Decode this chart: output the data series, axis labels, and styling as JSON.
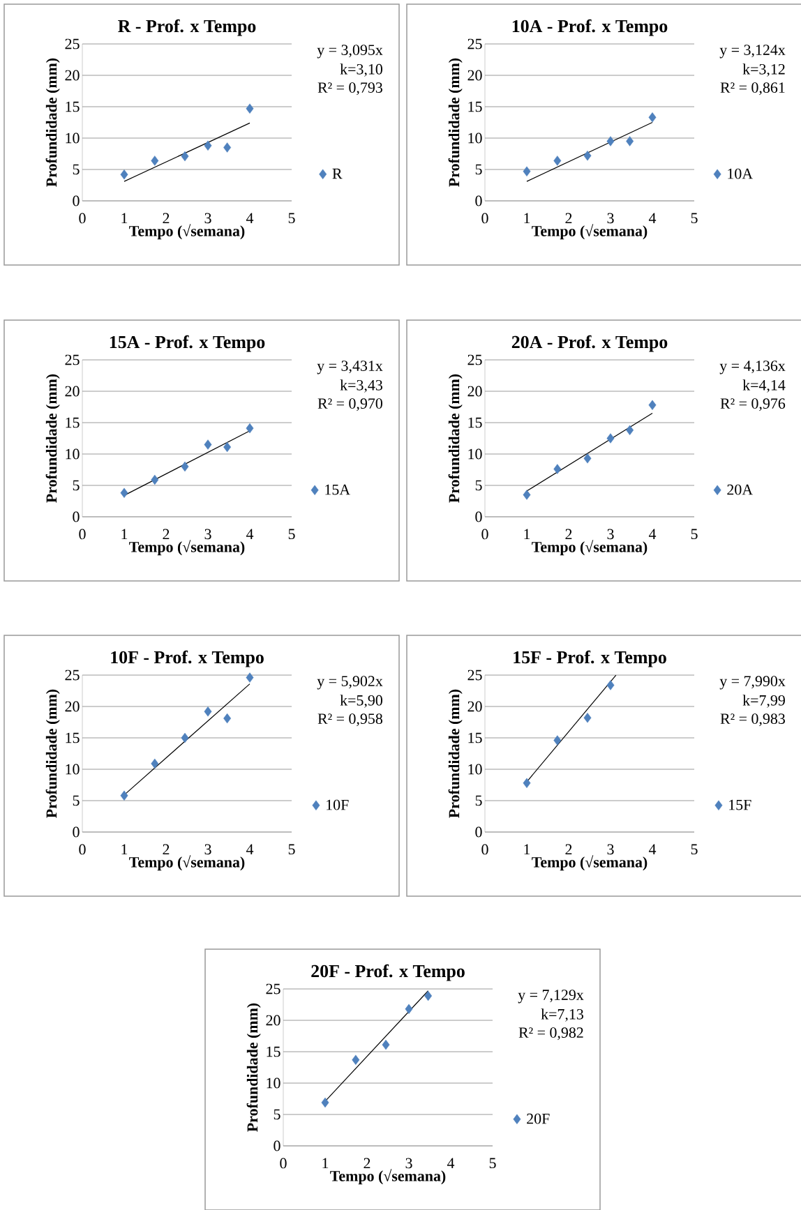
{
  "chart_data": [
    {
      "type": "scatter",
      "title": "R - Prof. x Tempo",
      "xlabel": "Tempo (√semana)",
      "ylabel": "Profundidade (mm)",
      "annotations": [
        "y = 3,095x",
        "k=3,10",
        "R² = 0,793"
      ],
      "xlim": [
        0,
        5
      ],
      "ylim": [
        0,
        25
      ],
      "xticks": [
        0,
        1,
        2,
        3,
        4,
        5
      ],
      "yticks": [
        0,
        5,
        10,
        15,
        20,
        25
      ],
      "grid": "y",
      "legend": "right",
      "series": [
        {
          "name": "R",
          "color": "#4f81bd",
          "marker": "diamond",
          "x": [
            1,
            1.73,
            2.45,
            3,
            3.46,
            4
          ],
          "values": [
            4.2,
            6.4,
            7.1,
            8.8,
            8.5,
            14.7
          ]
        },
        {
          "type": "line",
          "color": "#000000",
          "marker": "none",
          "x": [
            1,
            4
          ],
          "values": [
            3.1,
            12.4
          ]
        }
      ]
    },
    {
      "type": "scatter",
      "title": "10A - Prof. x Tempo",
      "xlabel": "Tempo (√semana)",
      "ylabel": "Profundidade (mm)",
      "annotations": [
        "y = 3,124x",
        "k=3,12",
        "R² = 0,861"
      ],
      "xlim": [
        0,
        5
      ],
      "ylim": [
        0,
        25
      ],
      "xticks": [
        0,
        1,
        2,
        3,
        4,
        5
      ],
      "yticks": [
        0,
        5,
        10,
        15,
        20,
        25
      ],
      "grid": "y",
      "legend": "right",
      "series": [
        {
          "name": "10A",
          "color": "#4f81bd",
          "marker": "diamond",
          "x": [
            1,
            1.73,
            2.45,
            3,
            3.46,
            4
          ],
          "values": [
            4.7,
            6.4,
            7.2,
            9.5,
            9.5,
            13.3
          ]
        },
        {
          "type": "line",
          "color": "#000000",
          "marker": "none",
          "x": [
            1,
            4
          ],
          "values": [
            3.1,
            12.5
          ]
        }
      ]
    },
    {
      "type": "scatter",
      "title": "15A - Prof. x Tempo",
      "xlabel": "Tempo (√semana)",
      "ylabel": "Profundidade (mm)",
      "annotations": [
        "y = 3,431x",
        "k=3,43",
        "R² = 0,970"
      ],
      "xlim": [
        0,
        5
      ],
      "ylim": [
        0,
        25
      ],
      "xticks": [
        0,
        1,
        2,
        3,
        4,
        5
      ],
      "yticks": [
        0,
        5,
        10,
        15,
        20,
        25
      ],
      "grid": "y",
      "legend": "right",
      "series": [
        {
          "name": "15A",
          "color": "#4f81bd",
          "marker": "diamond",
          "x": [
            1,
            1.73,
            2.45,
            3,
            3.46,
            4
          ],
          "values": [
            3.8,
            5.9,
            8.0,
            11.5,
            11.1,
            14.1
          ]
        },
        {
          "type": "line",
          "color": "#000000",
          "marker": "none",
          "x": [
            1,
            4
          ],
          "values": [
            3.4,
            13.7
          ]
        }
      ]
    },
    {
      "type": "scatter",
      "title": "20A - Prof. x Tempo",
      "xlabel": "Tempo (√semana)",
      "ylabel": "Profundidade (mm)",
      "annotations": [
        "y = 4,136x",
        "k=4,14",
        "R² = 0,976"
      ],
      "xlim": [
        0,
        5
      ],
      "ylim": [
        0,
        25
      ],
      "xticks": [
        0,
        1,
        2,
        3,
        4,
        5
      ],
      "yticks": [
        0,
        5,
        10,
        15,
        20,
        25
      ],
      "grid": "y",
      "legend": "right",
      "series": [
        {
          "name": "20A",
          "color": "#4f81bd",
          "marker": "diamond",
          "x": [
            1,
            1.73,
            2.45,
            3,
            3.46,
            4
          ],
          "values": [
            3.5,
            7.6,
            9.3,
            12.5,
            13.8,
            17.8
          ]
        },
        {
          "type": "line",
          "color": "#000000",
          "marker": "none",
          "x": [
            1,
            4
          ],
          "values": [
            4.1,
            16.5
          ]
        }
      ]
    },
    {
      "type": "scatter",
      "title": "10F - Prof. x Tempo",
      "xlabel": "Tempo (√semana)",
      "ylabel": "Profundidade (mm)",
      "annotations": [
        "y = 5,902x",
        "k=5,90",
        "R² = 0,958"
      ],
      "xlim": [
        0,
        5
      ],
      "ylim": [
        0,
        25
      ],
      "xticks": [
        0,
        1,
        2,
        3,
        4,
        5
      ],
      "yticks": [
        0,
        5,
        10,
        15,
        20,
        25
      ],
      "grid": "y",
      "legend": "right",
      "series": [
        {
          "name": "10F",
          "color": "#4f81bd",
          "marker": "diamond",
          "x": [
            1,
            1.73,
            2.45,
            3,
            3.46,
            4
          ],
          "values": [
            5.8,
            10.9,
            15.0,
            19.2,
            18.1,
            24.6
          ]
        },
        {
          "type": "line",
          "color": "#000000",
          "marker": "none",
          "x": [
            1,
            4
          ],
          "values": [
            5.9,
            23.6
          ]
        }
      ]
    },
    {
      "type": "scatter",
      "title": "15F - Prof. x Tempo",
      "xlabel": "Tempo (√semana)",
      "ylabel": "Profundidade (mm)",
      "annotations": [
        "y = 7,990x",
        "k=7,99",
        "R² = 0,983"
      ],
      "xlim": [
        0,
        5
      ],
      "ylim": [
        0,
        25
      ],
      "xticks": [
        0,
        1,
        2,
        3,
        4,
        5
      ],
      "yticks": [
        0,
        5,
        10,
        15,
        20,
        25
      ],
      "grid": "y",
      "legend": "right",
      "series": [
        {
          "name": "15F",
          "color": "#4f81bd",
          "marker": "diamond",
          "x": [
            1,
            1.73,
            2.45,
            3
          ],
          "values": [
            7.8,
            14.6,
            18.2,
            23.4
          ]
        },
        {
          "type": "line",
          "color": "#000000",
          "marker": "none",
          "x": [
            1,
            3.13
          ],
          "values": [
            8.0,
            25
          ]
        }
      ]
    },
    {
      "type": "scatter",
      "title": "20F - Prof. x Tempo",
      "xlabel": "Tempo (√semana)",
      "ylabel": "Profundidade (mm)",
      "annotations": [
        "y = 7,129x",
        "k=7,13",
        "R² = 0,982"
      ],
      "xlim": [
        0,
        5
      ],
      "ylim": [
        0,
        25
      ],
      "xticks": [
        0,
        1,
        2,
        3,
        4,
        5
      ],
      "yticks": [
        0,
        5,
        10,
        15,
        20,
        25
      ],
      "grid": "y",
      "legend": "right",
      "series": [
        {
          "name": "20F",
          "color": "#4f81bd",
          "marker": "diamond",
          "x": [
            1,
            1.73,
            2.45,
            3,
            3.46
          ],
          "values": [
            6.9,
            13.7,
            16.1,
            21.8,
            23.9
          ]
        },
        {
          "type": "line",
          "color": "#000000",
          "marker": "none",
          "x": [
            1,
            3.46
          ],
          "values": [
            7.1,
            24.7
          ]
        }
      ]
    }
  ]
}
